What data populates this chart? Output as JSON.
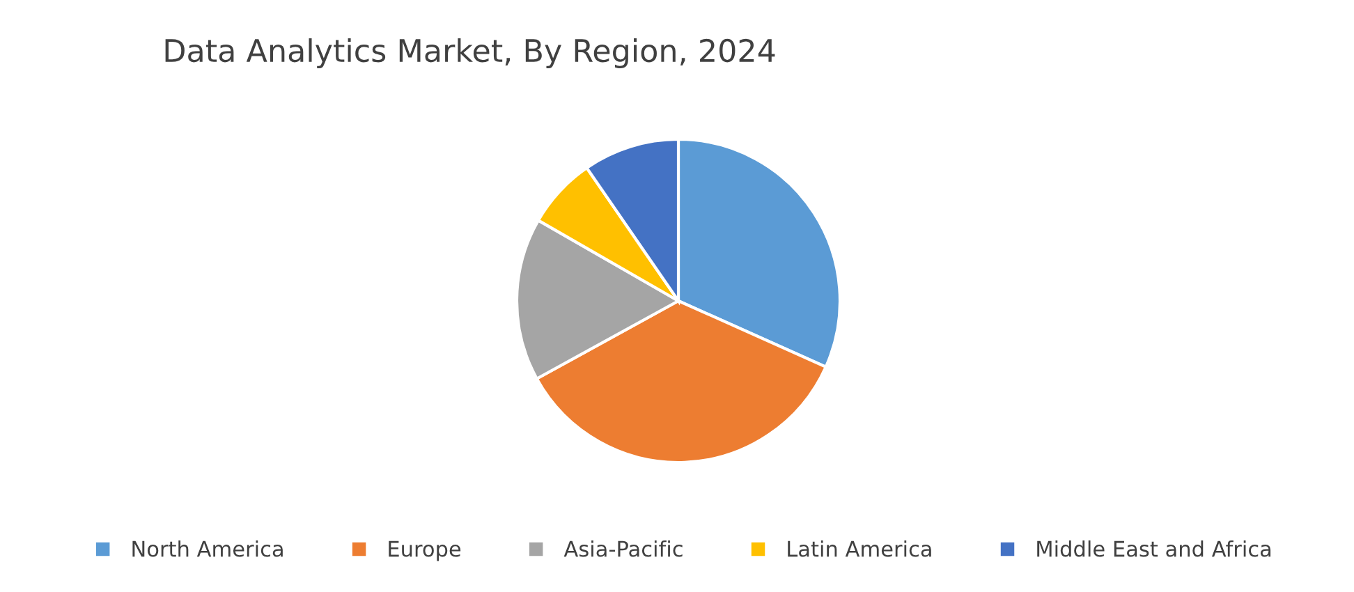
{
  "chart_data": {
    "type": "pie",
    "title": "Data Analytics Market, By Region, 2024",
    "categories": [
      "North America",
      "Europe",
      "Asia-Pacific",
      "Latin America",
      "Middle East and Africa"
    ],
    "values": [
      31.7,
      35.3,
      16.3,
      7.1,
      9.6
    ],
    "colors": [
      "#5b9bd5",
      "#ed7d31",
      "#a5a5a5",
      "#ffc000",
      "#4472c4"
    ],
    "legend": "bottom"
  }
}
